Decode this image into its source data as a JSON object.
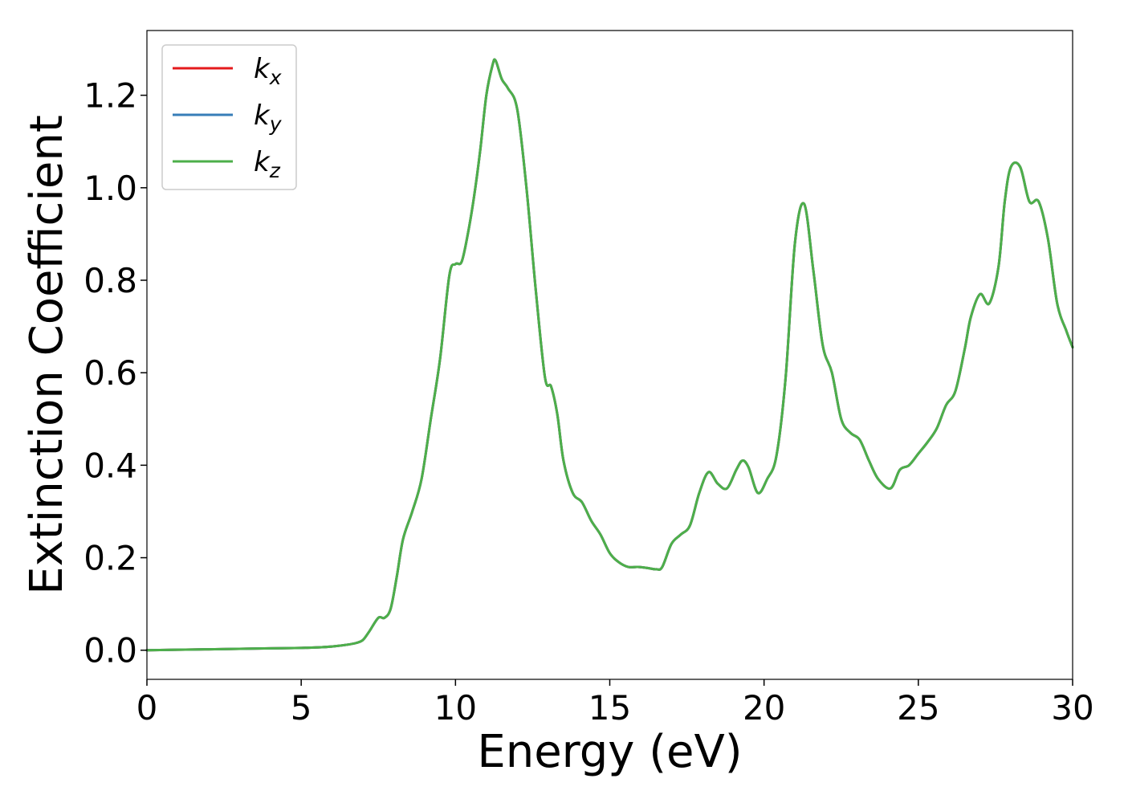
{
  "chart_data": {
    "type": "line",
    "title": "",
    "xlabel": "Energy (eV)",
    "ylabel": "Extinction Coefficient",
    "xlim": [
      0,
      30
    ],
    "ylim": [
      -0.063,
      1.34
    ],
    "xticks": [
      0,
      5,
      10,
      15,
      20,
      25,
      30
    ],
    "xtick_labels": [
      "0",
      "5",
      "10",
      "15",
      "20",
      "25",
      "30"
    ],
    "yticks": [
      0.0,
      0.2,
      0.4,
      0.6,
      0.8,
      1.0,
      1.2
    ],
    "ytick_labels": [
      "0.0",
      "0.2",
      "0.4",
      "0.6",
      "0.8",
      "1.0",
      "1.2"
    ],
    "grid": false,
    "legend_position": "top-left",
    "x": [
      0,
      1,
      2,
      3,
      4,
      5,
      5.5,
      6,
      6.5,
      6.8,
      7.0,
      7.2,
      7.5,
      7.7,
      7.9,
      8.1,
      8.3,
      8.6,
      8.9,
      9.2,
      9.5,
      9.8,
      10.0,
      10.2,
      10.4,
      10.6,
      10.8,
      11.0,
      11.2,
      11.3,
      11.5,
      11.7,
      12.0,
      12.3,
      12.6,
      12.9,
      13.1,
      13.3,
      13.5,
      13.8,
      14.1,
      14.4,
      14.7,
      15.0,
      15.3,
      15.6,
      15.9,
      16.2,
      16.5,
      16.7,
      17.0,
      17.3,
      17.6,
      17.9,
      18.2,
      18.5,
      18.8,
      19.1,
      19.3,
      19.5,
      19.8,
      20.1,
      20.4,
      20.7,
      21.0,
      21.3,
      21.6,
      21.9,
      22.2,
      22.5,
      22.8,
      23.1,
      23.4,
      23.7,
      24.1,
      24.4,
      24.7,
      25.0,
      25.3,
      25.6,
      25.9,
      26.2,
      26.5,
      26.7,
      27.0,
      27.3,
      27.6,
      27.8,
      28.0,
      28.3,
      28.6,
      28.9,
      29.2,
      29.5,
      29.8,
      30.0
    ],
    "series": [
      {
        "name": "k_x",
        "color": "#e41a1c",
        "values": [
          0.0,
          0.001,
          0.002,
          0.003,
          0.004,
          0.005,
          0.006,
          0.008,
          0.012,
          0.016,
          0.022,
          0.04,
          0.07,
          0.07,
          0.09,
          0.16,
          0.24,
          0.3,
          0.37,
          0.5,
          0.63,
          0.81,
          0.835,
          0.84,
          0.9,
          0.98,
          1.08,
          1.2,
          1.265,
          1.275,
          1.235,
          1.215,
          1.17,
          1.0,
          0.78,
          0.59,
          0.57,
          0.51,
          0.41,
          0.34,
          0.32,
          0.28,
          0.25,
          0.21,
          0.19,
          0.18,
          0.18,
          0.178,
          0.175,
          0.18,
          0.23,
          0.25,
          0.27,
          0.34,
          0.385,
          0.36,
          0.35,
          0.39,
          0.41,
          0.395,
          0.34,
          0.37,
          0.42,
          0.59,
          0.88,
          0.965,
          0.82,
          0.66,
          0.6,
          0.5,
          0.47,
          0.455,
          0.41,
          0.37,
          0.35,
          0.39,
          0.4,
          0.425,
          0.45,
          0.48,
          0.53,
          0.56,
          0.65,
          0.72,
          0.77,
          0.75,
          0.83,
          0.97,
          1.045,
          1.045,
          0.97,
          0.97,
          0.89,
          0.75,
          0.69,
          0.655
        ]
      },
      {
        "name": "k_y",
        "color": "#377eb8",
        "values": [
          0.0,
          0.001,
          0.002,
          0.003,
          0.004,
          0.005,
          0.006,
          0.008,
          0.012,
          0.016,
          0.022,
          0.04,
          0.07,
          0.07,
          0.09,
          0.16,
          0.24,
          0.3,
          0.37,
          0.5,
          0.63,
          0.81,
          0.835,
          0.84,
          0.9,
          0.98,
          1.08,
          1.2,
          1.265,
          1.275,
          1.235,
          1.215,
          1.17,
          1.0,
          0.78,
          0.59,
          0.57,
          0.51,
          0.41,
          0.34,
          0.32,
          0.28,
          0.25,
          0.21,
          0.19,
          0.18,
          0.18,
          0.178,
          0.175,
          0.18,
          0.23,
          0.25,
          0.27,
          0.34,
          0.385,
          0.36,
          0.35,
          0.39,
          0.41,
          0.395,
          0.34,
          0.37,
          0.42,
          0.59,
          0.88,
          0.965,
          0.82,
          0.66,
          0.6,
          0.5,
          0.47,
          0.455,
          0.41,
          0.37,
          0.35,
          0.39,
          0.4,
          0.425,
          0.45,
          0.48,
          0.53,
          0.56,
          0.65,
          0.72,
          0.77,
          0.75,
          0.83,
          0.97,
          1.045,
          1.045,
          0.97,
          0.97,
          0.89,
          0.75,
          0.69,
          0.655
        ]
      },
      {
        "name": "k_z",
        "color": "#4daf4a",
        "values": [
          0.0,
          0.001,
          0.002,
          0.003,
          0.004,
          0.005,
          0.006,
          0.008,
          0.012,
          0.016,
          0.022,
          0.04,
          0.07,
          0.07,
          0.09,
          0.16,
          0.24,
          0.3,
          0.37,
          0.5,
          0.63,
          0.81,
          0.835,
          0.84,
          0.9,
          0.98,
          1.08,
          1.2,
          1.265,
          1.275,
          1.235,
          1.215,
          1.17,
          1.0,
          0.78,
          0.59,
          0.57,
          0.51,
          0.41,
          0.34,
          0.32,
          0.28,
          0.25,
          0.21,
          0.19,
          0.18,
          0.18,
          0.178,
          0.175,
          0.18,
          0.23,
          0.25,
          0.27,
          0.34,
          0.385,
          0.36,
          0.35,
          0.39,
          0.41,
          0.395,
          0.34,
          0.37,
          0.42,
          0.59,
          0.88,
          0.965,
          0.82,
          0.66,
          0.6,
          0.5,
          0.47,
          0.455,
          0.41,
          0.37,
          0.35,
          0.39,
          0.4,
          0.425,
          0.45,
          0.48,
          0.53,
          0.56,
          0.65,
          0.72,
          0.77,
          0.75,
          0.83,
          0.97,
          1.045,
          1.045,
          0.97,
          0.97,
          0.89,
          0.75,
          0.69,
          0.655
        ]
      }
    ],
    "legend": [
      {
        "base": "k",
        "sub": "x",
        "color": "#e41a1c"
      },
      {
        "base": "k",
        "sub": "y",
        "color": "#377eb8"
      },
      {
        "base": "k",
        "sub": "z",
        "color": "#4daf4a"
      }
    ]
  }
}
